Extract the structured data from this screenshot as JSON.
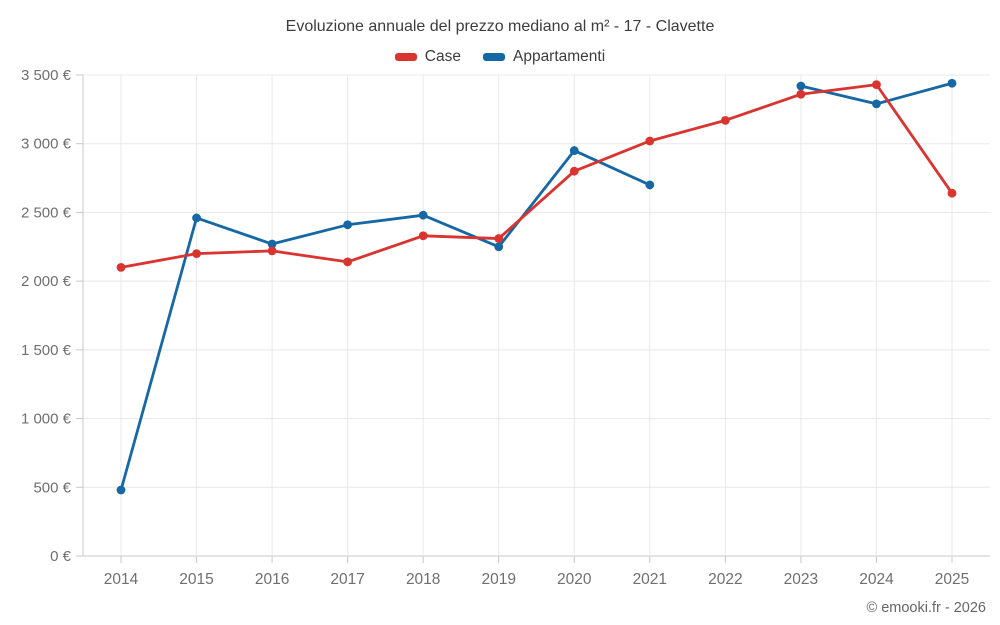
{
  "header": {
    "title": "Evoluzione annuale del prezzo mediano al m² - 17 - Clavette"
  },
  "footer": {
    "credit": "© emooki.fr - 2026"
  },
  "chart_data": {
    "type": "line",
    "title": "Evoluzione annuale del prezzo mediano al m² - 17 - Clavette",
    "xlabel": "",
    "ylabel": "",
    "categories": [
      "2014",
      "2015",
      "2016",
      "2017",
      "2018",
      "2019",
      "2020",
      "2021",
      "2022",
      "2023",
      "2024",
      "2025"
    ],
    "series": [
      {
        "name": "Case",
        "color": "#d9342f",
        "values": [
          2100,
          2200,
          2220,
          2140,
          2330,
          2310,
          2800,
          3020,
          3170,
          3360,
          3430,
          2640
        ]
      },
      {
        "name": "Appartamenti",
        "color": "#1668a4",
        "values": [
          480,
          2460,
          2270,
          2410,
          2480,
          2250,
          2950,
          2700,
          null,
          3420,
          3290,
          3440
        ]
      }
    ],
    "ylim": [
      0,
      3500
    ],
    "ytick_values": [
      0,
      500,
      1000,
      1500,
      2000,
      2500,
      3000,
      3500
    ],
    "ytick_labels": [
      "0 €",
      "500 €",
      "1 000 €",
      "1 500 €",
      "2 000 €",
      "2 500 €",
      "3 000 €",
      "3 500 €"
    ],
    "grid": true,
    "legend_position": "top"
  }
}
